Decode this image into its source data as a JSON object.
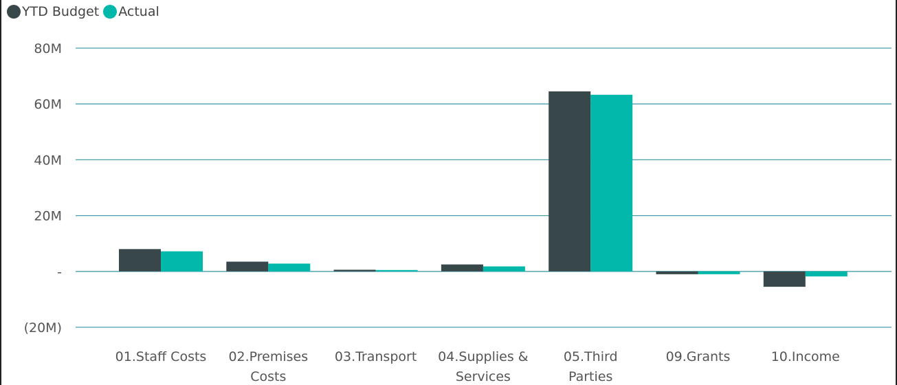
{
  "chart_data": {
    "type": "bar",
    "categories": [
      "01.Staff Costs",
      "02.Premises Costs",
      "03.Transport",
      "04.Supplies & Services",
      "05.Third Parties",
      "09.Grants",
      "10.Income"
    ],
    "category_lines": [
      [
        "01.Staff Costs"
      ],
      [
        "02.Premises",
        "Costs"
      ],
      [
        "03.Transport"
      ],
      [
        "04.Supplies &",
        "Services"
      ],
      [
        "05.Third",
        "Parties"
      ],
      [
        "09.Grants"
      ],
      [
        "10.Income"
      ]
    ],
    "series": [
      {
        "name": "YTD Budget",
        "color": "#37474a",
        "values": [
          8,
          3.5,
          0.6,
          2.5,
          64.5,
          -1,
          -5.5
        ]
      },
      {
        "name": "Actual",
        "color": "#01b8aa",
        "values": [
          7.2,
          2.8,
          0.5,
          1.8,
          63.3,
          -1,
          -1.8
        ]
      }
    ],
    "yticks": [
      {
        "value": -20,
        "label": "(20M)"
      },
      {
        "value": 0,
        "label": "-"
      },
      {
        "value": 20,
        "label": "20M"
      },
      {
        "value": 40,
        "label": "40M"
      },
      {
        "value": 60,
        "label": "60M"
      },
      {
        "value": 80,
        "label": "80M"
      }
    ],
    "ylim": [
      -20,
      80
    ],
    "grid": true,
    "legend_position": "top-left",
    "gridline_color": "#4a9fad"
  }
}
